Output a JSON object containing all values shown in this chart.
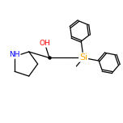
{
  "bg_color": "#ffffff",
  "bond_color": "#000000",
  "atom_colors": {
    "N": "#0000ff",
    "O": "#ff0000",
    "Si": "#ffa500",
    "C": "#000000",
    "H": "#000000"
  },
  "font_size_atom": 6.5,
  "line_width": 0.9,
  "figsize": [
    1.52,
    1.52
  ],
  "dpi": 100,
  "xlim": [
    0,
    10
  ],
  "ylim": [
    0,
    10
  ]
}
